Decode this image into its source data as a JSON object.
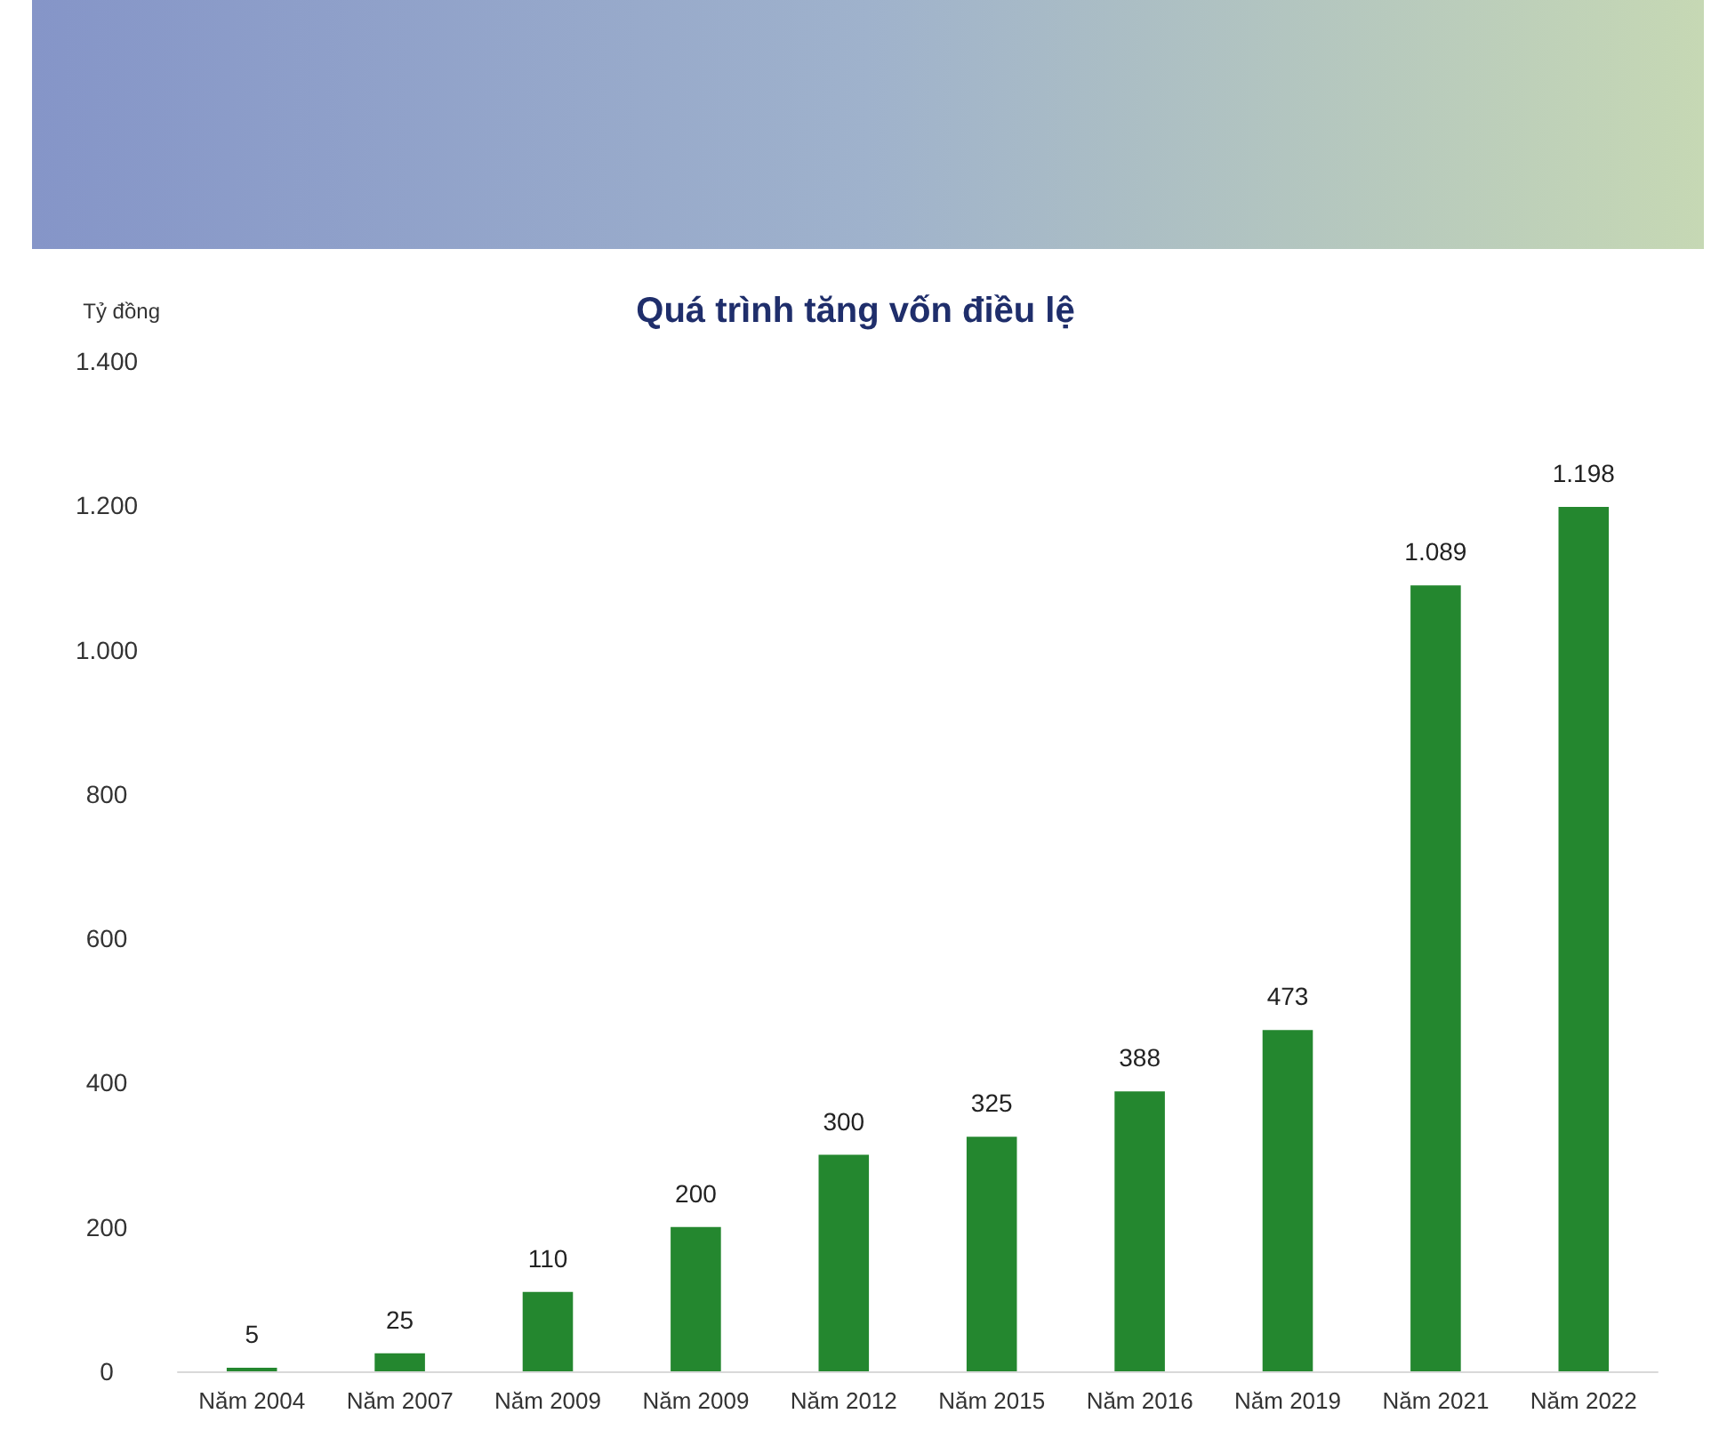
{
  "chart_data": {
    "type": "bar",
    "title": "Quá trình tăng vốn điều lệ",
    "ylabel": "Tỷ đồng",
    "categories": [
      "Năm 2004",
      "Năm 2007",
      "Năm 2009",
      "Năm 2009",
      "Năm 2012",
      "Năm 2015",
      "Năm 2016",
      "Năm 2019",
      "Năm 2021",
      "Năm 2022"
    ],
    "values": [
      5,
      25,
      110,
      200,
      300,
      325,
      388,
      473,
      1089,
      1198
    ],
    "value_labels": [
      "5",
      "25",
      "110",
      "200",
      "300",
      "325",
      "388",
      "473",
      "1.089",
      "1.198"
    ],
    "color": "#24872f",
    "ylim": [
      0,
      1400
    ],
    "yticks": [
      0,
      200,
      400,
      600,
      800,
      {
        "value": 1000,
        "label": "1.000"
      },
      {
        "value": 1200,
        "label": "1.200"
      },
      {
        "value": 1400,
        "label": "1.400"
      }
    ],
    "grid": false
  }
}
